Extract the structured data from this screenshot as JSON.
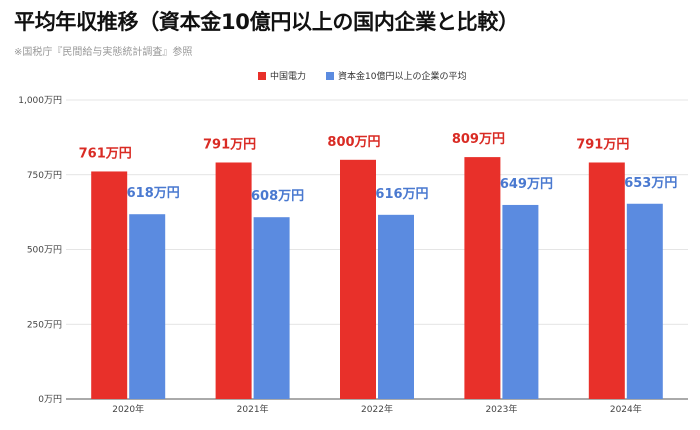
{
  "title": "平均年収推移（資本金10億円以上の国内企業と比較）",
  "source": "※国税庁『民間給与実態統計調査』参照",
  "chart_data": {
    "type": "bar",
    "categories": [
      "2020年",
      "2021年",
      "2022年",
      "2023年",
      "2024年"
    ],
    "series": [
      {
        "name": "中国電力",
        "color": "#e8302a",
        "values": [
          761,
          791,
          800,
          809,
          791
        ],
        "labels": [
          "761万円",
          "791万円",
          "800万円",
          "809万円",
          "791万円"
        ]
      },
      {
        "name": "資本金10億円以上の企業の平均",
        "color": "#5b8be0",
        "values": [
          618,
          608,
          616,
          649,
          653
        ],
        "labels": [
          "618万円",
          "608万円",
          "616万円",
          "649万円",
          "653万円"
        ]
      }
    ],
    "ylim": [
      0,
      1000
    ],
    "yticks": [
      0,
      250,
      500,
      750,
      1000
    ],
    "ytick_labels": [
      "0万円",
      "250万円",
      "500万円",
      "750万円",
      "1,000万円"
    ],
    "grid": true,
    "legend_position": "top-center"
  }
}
